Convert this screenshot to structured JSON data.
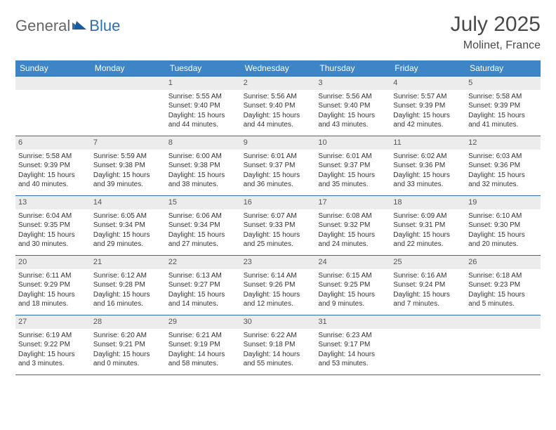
{
  "logo": {
    "part1": "General",
    "part2": "Blue"
  },
  "title": "July 2025",
  "subtitle": "Molinet, France",
  "colors": {
    "header_bg": "#3d85c6",
    "rule": "#2f6fb0",
    "daynum_bg": "#ececec",
    "text": "#333333",
    "title_text": "#4a4a4a"
  },
  "day_headers": [
    "Sunday",
    "Monday",
    "Tuesday",
    "Wednesday",
    "Thursday",
    "Friday",
    "Saturday"
  ],
  "weeks": [
    [
      {
        "blank": true
      },
      {
        "blank": true
      },
      {
        "day": "1",
        "sunrise": "Sunrise: 5:55 AM",
        "sunset": "Sunset: 9:40 PM",
        "daylight": "Daylight: 15 hours and 44 minutes."
      },
      {
        "day": "2",
        "sunrise": "Sunrise: 5:56 AM",
        "sunset": "Sunset: 9:40 PM",
        "daylight": "Daylight: 15 hours and 44 minutes."
      },
      {
        "day": "3",
        "sunrise": "Sunrise: 5:56 AM",
        "sunset": "Sunset: 9:40 PM",
        "daylight": "Daylight: 15 hours and 43 minutes."
      },
      {
        "day": "4",
        "sunrise": "Sunrise: 5:57 AM",
        "sunset": "Sunset: 9:39 PM",
        "daylight": "Daylight: 15 hours and 42 minutes."
      },
      {
        "day": "5",
        "sunrise": "Sunrise: 5:58 AM",
        "sunset": "Sunset: 9:39 PM",
        "daylight": "Daylight: 15 hours and 41 minutes."
      }
    ],
    [
      {
        "day": "6",
        "sunrise": "Sunrise: 5:58 AM",
        "sunset": "Sunset: 9:39 PM",
        "daylight": "Daylight: 15 hours and 40 minutes."
      },
      {
        "day": "7",
        "sunrise": "Sunrise: 5:59 AM",
        "sunset": "Sunset: 9:38 PM",
        "daylight": "Daylight: 15 hours and 39 minutes."
      },
      {
        "day": "8",
        "sunrise": "Sunrise: 6:00 AM",
        "sunset": "Sunset: 9:38 PM",
        "daylight": "Daylight: 15 hours and 38 minutes."
      },
      {
        "day": "9",
        "sunrise": "Sunrise: 6:01 AM",
        "sunset": "Sunset: 9:37 PM",
        "daylight": "Daylight: 15 hours and 36 minutes."
      },
      {
        "day": "10",
        "sunrise": "Sunrise: 6:01 AM",
        "sunset": "Sunset: 9:37 PM",
        "daylight": "Daylight: 15 hours and 35 minutes."
      },
      {
        "day": "11",
        "sunrise": "Sunrise: 6:02 AM",
        "sunset": "Sunset: 9:36 PM",
        "daylight": "Daylight: 15 hours and 33 minutes."
      },
      {
        "day": "12",
        "sunrise": "Sunrise: 6:03 AM",
        "sunset": "Sunset: 9:36 PM",
        "daylight": "Daylight: 15 hours and 32 minutes."
      }
    ],
    [
      {
        "day": "13",
        "sunrise": "Sunrise: 6:04 AM",
        "sunset": "Sunset: 9:35 PM",
        "daylight": "Daylight: 15 hours and 30 minutes."
      },
      {
        "day": "14",
        "sunrise": "Sunrise: 6:05 AM",
        "sunset": "Sunset: 9:34 PM",
        "daylight": "Daylight: 15 hours and 29 minutes."
      },
      {
        "day": "15",
        "sunrise": "Sunrise: 6:06 AM",
        "sunset": "Sunset: 9:34 PM",
        "daylight": "Daylight: 15 hours and 27 minutes."
      },
      {
        "day": "16",
        "sunrise": "Sunrise: 6:07 AM",
        "sunset": "Sunset: 9:33 PM",
        "daylight": "Daylight: 15 hours and 25 minutes."
      },
      {
        "day": "17",
        "sunrise": "Sunrise: 6:08 AM",
        "sunset": "Sunset: 9:32 PM",
        "daylight": "Daylight: 15 hours and 24 minutes."
      },
      {
        "day": "18",
        "sunrise": "Sunrise: 6:09 AM",
        "sunset": "Sunset: 9:31 PM",
        "daylight": "Daylight: 15 hours and 22 minutes."
      },
      {
        "day": "19",
        "sunrise": "Sunrise: 6:10 AM",
        "sunset": "Sunset: 9:30 PM",
        "daylight": "Daylight: 15 hours and 20 minutes."
      }
    ],
    [
      {
        "day": "20",
        "sunrise": "Sunrise: 6:11 AM",
        "sunset": "Sunset: 9:29 PM",
        "daylight": "Daylight: 15 hours and 18 minutes."
      },
      {
        "day": "21",
        "sunrise": "Sunrise: 6:12 AM",
        "sunset": "Sunset: 9:28 PM",
        "daylight": "Daylight: 15 hours and 16 minutes."
      },
      {
        "day": "22",
        "sunrise": "Sunrise: 6:13 AM",
        "sunset": "Sunset: 9:27 PM",
        "daylight": "Daylight: 15 hours and 14 minutes."
      },
      {
        "day": "23",
        "sunrise": "Sunrise: 6:14 AM",
        "sunset": "Sunset: 9:26 PM",
        "daylight": "Daylight: 15 hours and 12 minutes."
      },
      {
        "day": "24",
        "sunrise": "Sunrise: 6:15 AM",
        "sunset": "Sunset: 9:25 PM",
        "daylight": "Daylight: 15 hours and 9 minutes."
      },
      {
        "day": "25",
        "sunrise": "Sunrise: 6:16 AM",
        "sunset": "Sunset: 9:24 PM",
        "daylight": "Daylight: 15 hours and 7 minutes."
      },
      {
        "day": "26",
        "sunrise": "Sunrise: 6:18 AM",
        "sunset": "Sunset: 9:23 PM",
        "daylight": "Daylight: 15 hours and 5 minutes."
      }
    ],
    [
      {
        "day": "27",
        "sunrise": "Sunrise: 6:19 AM",
        "sunset": "Sunset: 9:22 PM",
        "daylight": "Daylight: 15 hours and 3 minutes."
      },
      {
        "day": "28",
        "sunrise": "Sunrise: 6:20 AM",
        "sunset": "Sunset: 9:21 PM",
        "daylight": "Daylight: 15 hours and 0 minutes."
      },
      {
        "day": "29",
        "sunrise": "Sunrise: 6:21 AM",
        "sunset": "Sunset: 9:19 PM",
        "daylight": "Daylight: 14 hours and 58 minutes."
      },
      {
        "day": "30",
        "sunrise": "Sunrise: 6:22 AM",
        "sunset": "Sunset: 9:18 PM",
        "daylight": "Daylight: 14 hours and 55 minutes."
      },
      {
        "day": "31",
        "sunrise": "Sunrise: 6:23 AM",
        "sunset": "Sunset: 9:17 PM",
        "daylight": "Daylight: 14 hours and 53 minutes."
      },
      {
        "blank": true
      },
      {
        "blank": true
      }
    ]
  ]
}
